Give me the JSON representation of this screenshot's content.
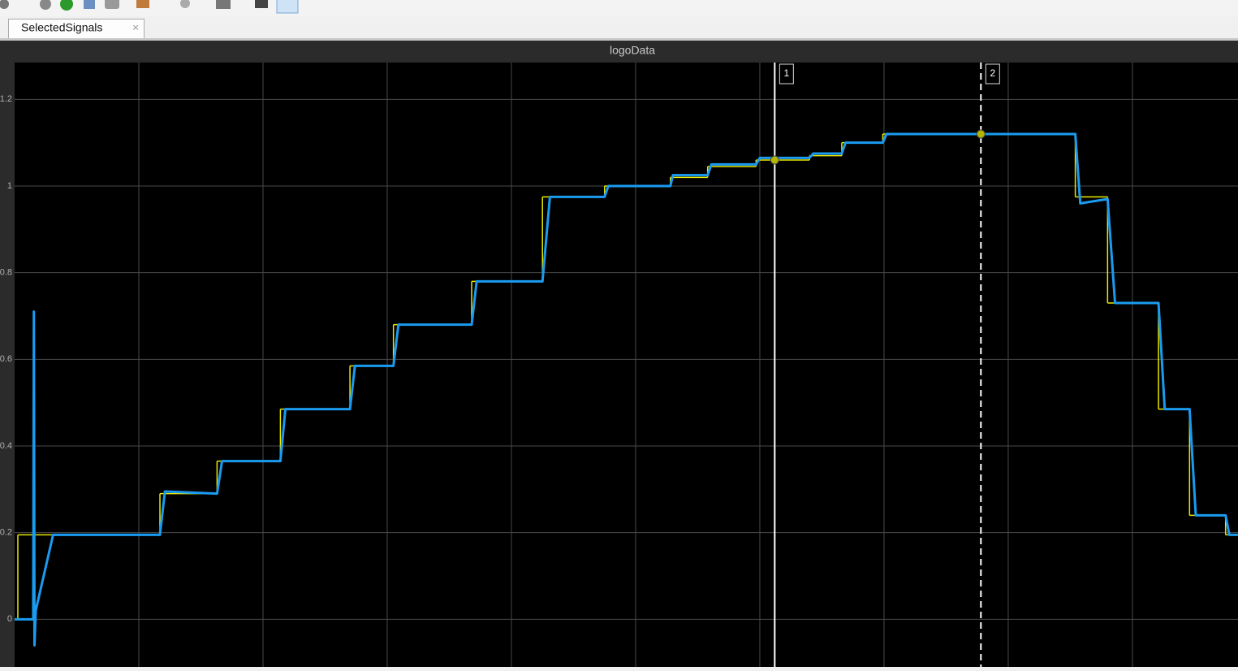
{
  "tab": {
    "label": "SelectedSignals"
  },
  "chart_data": {
    "type": "line",
    "title": "logoData",
    "xlim": [
      0,
      9.85
    ],
    "xticks": [
      1,
      2,
      3,
      4,
      5,
      6,
      7,
      8,
      9
    ],
    "ylim": [
      -0.11,
      1.285
    ],
    "yticks": [
      0,
      0.2,
      0.4,
      0.6,
      0.8,
      1,
      1.2
    ],
    "grid": true,
    "series": [
      {
        "color": "#e8e800",
        "step": true,
        "x": [
          0,
          0.026,
          1.17,
          1.63,
          2.14,
          2.7,
          3.05,
          3.68,
          4.25,
          4.75,
          5.28,
          5.58,
          5.97,
          6.4,
          6.66,
          6.99,
          8.54,
          8.8,
          9.21,
          9.46,
          9.75
        ],
        "values": [
          0,
          0.195,
          0.29,
          0.365,
          0.485,
          0.585,
          0.68,
          0.78,
          0.975,
          1.0,
          1.02,
          1.045,
          1.06,
          1.07,
          1.1,
          1.12,
          0.975,
          0.73,
          0.485,
          0.24,
          0.195
        ]
      },
      {
        "color": "#1a9bf0",
        "x": [
          0,
          0.15,
          0.155,
          0.16,
          0.17,
          0.31,
          1.17,
          1.21,
          1.63,
          1.67,
          2.14,
          2.18,
          2.7,
          2.74,
          3.05,
          3.09,
          3.68,
          3.72,
          4.25,
          4.31,
          4.75,
          4.78,
          5.28,
          5.3,
          5.58,
          5.61,
          5.97,
          6.0,
          6.4,
          6.43,
          6.66,
          6.69,
          6.99,
          7.02,
          8.54,
          8.58,
          8.8,
          8.86,
          9.21,
          9.26,
          9.46,
          9.51,
          9.75,
          9.78,
          9.85
        ],
        "values": [
          0,
          0,
          0.71,
          -0.06,
          0.02,
          0.195,
          0.195,
          0.295,
          0.29,
          0.365,
          0.365,
          0.485,
          0.485,
          0.585,
          0.585,
          0.68,
          0.68,
          0.78,
          0.78,
          0.975,
          0.975,
          1.0,
          1.0,
          1.025,
          1.025,
          1.05,
          1.05,
          1.065,
          1.065,
          1.075,
          1.075,
          1.1,
          1.1,
          1.12,
          1.12,
          0.96,
          0.97,
          0.73,
          0.73,
          0.485,
          0.485,
          0.24,
          0.24,
          0.195,
          0.195
        ]
      }
    ],
    "cursors": [
      {
        "label": "1",
        "x": 6.12,
        "y": 1.06,
        "dashed": false
      },
      {
        "label": "2",
        "x": 7.78,
        "y": 1.12,
        "dashed": true
      }
    ]
  }
}
